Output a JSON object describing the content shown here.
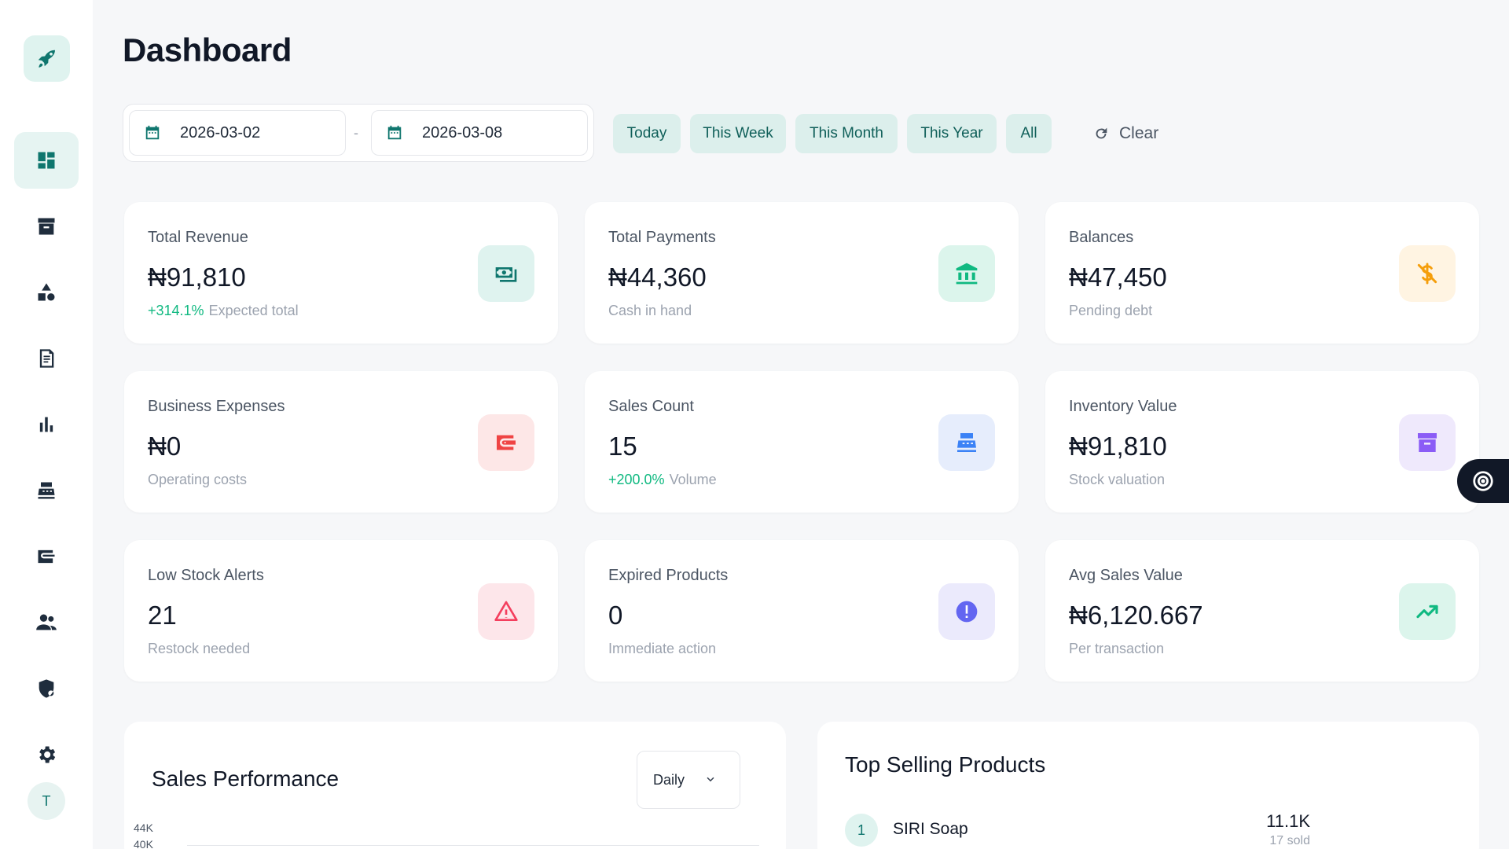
{
  "app": {
    "avatar_initial": "T"
  },
  "sidebar": {
    "items": [
      {
        "icon": "dashboard-icon",
        "active": true
      },
      {
        "icon": "archive-icon"
      },
      {
        "icon": "categories-icon"
      },
      {
        "icon": "receipt-icon"
      },
      {
        "icon": "bar-chart-icon"
      },
      {
        "icon": "cash-register-icon"
      },
      {
        "icon": "wallet-icon"
      },
      {
        "icon": "users-icon"
      },
      {
        "icon": "shield-user-icon"
      },
      {
        "icon": "gear-icon"
      }
    ]
  },
  "header": {
    "title": "Dashboard"
  },
  "filters": {
    "start_date": "2026-03-02",
    "separator": "-",
    "end_date": "2026-03-08",
    "quick": [
      "Today",
      "This Week",
      "This Month",
      "This Year",
      "All"
    ],
    "clear_label": "Clear"
  },
  "stats": [
    {
      "label": "Total Revenue",
      "value": "₦91,810",
      "trend": "+314.1%",
      "sub": "Expected total",
      "icon": "cash-icon",
      "color": "#0f766e",
      "bg": "#dff3ef"
    },
    {
      "label": "Total Payments",
      "value": "₦44,360",
      "trend": "",
      "sub": "Cash in hand",
      "icon": "bank-icon",
      "color": "#10b981",
      "bg": "#dcf5ec"
    },
    {
      "label": "Balances",
      "value": "₦47,450",
      "trend": "",
      "sub": "Pending debt",
      "icon": "dollar-off-icon",
      "color": "#f59e0b",
      "bg": "#fff4e2"
    },
    {
      "label": "Business Expenses",
      "value": "₦0",
      "trend": "",
      "sub": "Operating costs",
      "icon": "wallet-icon",
      "color": "#ef4444",
      "bg": "#fde7e7"
    },
    {
      "label": "Sales Count",
      "value": "15",
      "trend": "+200.0%",
      "sub": "Volume",
      "icon": "cash-register-icon",
      "color": "#3b82f6",
      "bg": "#e6edfc"
    },
    {
      "label": "Inventory Value",
      "value": "₦91,810",
      "trend": "",
      "sub": "Stock valuation",
      "icon": "archive-icon",
      "color": "#8b5cf6",
      "bg": "#efe9fc"
    },
    {
      "label": "Low Stock Alerts",
      "value": "21",
      "trend": "",
      "sub": "Restock needed",
      "icon": "warning-icon",
      "color": "#f43f5e",
      "bg": "#fde6ea"
    },
    {
      "label": "Expired Products",
      "value": "0",
      "trend": "",
      "sub": "Immediate action",
      "icon": "alert-circle-icon",
      "color": "#6366f1",
      "bg": "#ebeafc"
    },
    {
      "label": "Avg Sales Value",
      "value": "₦6,120.667",
      "trend": "",
      "sub": "Per transaction",
      "icon": "trending-up-icon",
      "color": "#10b981",
      "bg": "#dcf5ec"
    }
  ],
  "sales_performance": {
    "title": "Sales Performance",
    "period": "Daily",
    "y_ticks": [
      "44K",
      "40K"
    ]
  },
  "top_products": {
    "title": "Top Selling Products",
    "items": [
      {
        "rank": "1",
        "name": "SIRI Soap",
        "amount": "11.1K",
        "sold": "17 sold"
      }
    ]
  }
}
